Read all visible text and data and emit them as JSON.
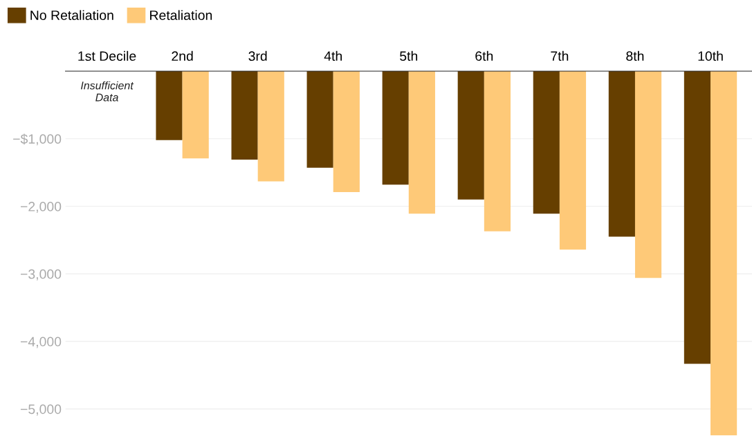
{
  "chart_data": {
    "type": "bar",
    "categories": [
      "1st Decile",
      "2nd",
      "3rd",
      "4th",
      "5th",
      "6th",
      "7th",
      "8th",
      "10th"
    ],
    "series": [
      {
        "name": "No Retaliation",
        "color": "#663f00",
        "values": [
          null,
          -1020,
          -1310,
          -1430,
          -1680,
          -1900,
          -2110,
          -2450,
          -4330
        ]
      },
      {
        "name": "Retaliation",
        "color": "#fec978",
        "values": [
          null,
          -1290,
          -1630,
          -1790,
          -2110,
          -2370,
          -2640,
          -3060,
          -5390
        ]
      }
    ],
    "ylim": [
      -5400,
      0
    ],
    "yticks": [
      {
        "value": -1000,
        "label": "−$1,000"
      },
      {
        "value": -2000,
        "label": "−2,000"
      },
      {
        "value": -3000,
        "label": "−3,000"
      },
      {
        "value": -4000,
        "label": "−4,000"
      },
      {
        "value": -5000,
        "label": "−5,000"
      }
    ],
    "grid": "y",
    "legend": "top left",
    "annotations": [
      "Insufficient\nData"
    ]
  }
}
